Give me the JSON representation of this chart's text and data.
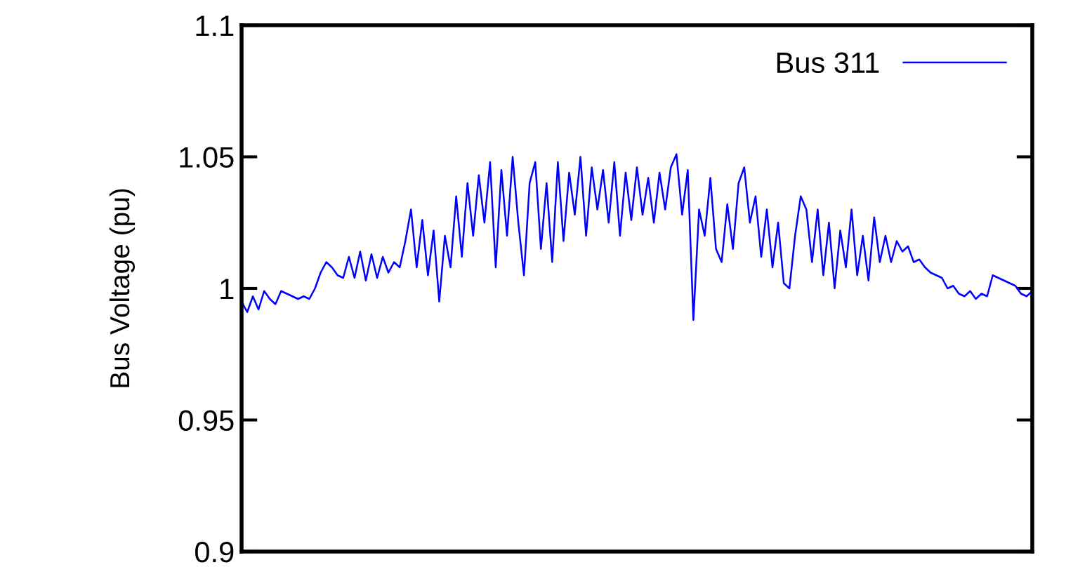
{
  "chart_data": {
    "type": "line",
    "ylabel": "Bus Voltage (pu)",
    "categories": [
      null,
      null,
      null,
      null,
      null,
      null,
      null,
      null,
      null,
      null,
      null,
      null,
      null,
      null,
      null,
      null,
      null,
      null,
      null,
      null,
      null,
      null,
      null,
      null,
      null,
      null,
      null,
      null,
      null,
      null,
      null,
      null,
      null,
      null,
      null,
      null,
      null,
      null,
      null,
      null,
      null,
      null,
      null,
      null,
      null,
      null,
      null,
      null,
      null,
      null,
      null,
      null,
      null,
      null,
      null,
      null,
      null,
      null,
      null,
      null,
      null,
      null,
      null,
      null,
      null,
      null,
      null,
      null,
      null,
      null,
      null,
      null,
      null,
      null,
      null,
      null,
      null,
      null,
      null,
      null,
      null,
      null,
      null,
      null,
      null,
      null,
      null,
      null,
      null,
      null,
      null,
      null,
      null,
      null,
      null,
      null,
      null,
      null,
      null,
      null,
      null,
      null,
      null,
      null,
      null,
      null,
      null,
      null,
      null,
      null,
      null,
      null,
      null,
      null,
      null,
      null,
      null,
      null,
      null,
      null,
      null,
      null,
      null,
      null,
      null,
      null,
      null,
      null,
      null,
      null,
      null,
      null,
      null,
      null,
      null,
      null,
      null,
      null,
      null,
      null,
      null
    ],
    "series": [
      {
        "name": "Bus 311",
        "color": "#0000ff",
        "values": [
          0.995,
          0.991,
          0.997,
          0.992,
          0.999,
          0.996,
          0.994,
          0.999,
          0.998,
          0.997,
          0.996,
          0.997,
          0.996,
          1.0,
          1.006,
          1.01,
          1.008,
          1.005,
          1.004,
          1.012,
          1.004,
          1.014,
          1.003,
          1.013,
          1.004,
          1.012,
          1.006,
          1.01,
          1.008,
          1.018,
          1.03,
          1.008,
          1.026,
          1.005,
          1.022,
          0.995,
          1.02,
          1.008,
          1.035,
          1.012,
          1.04,
          1.02,
          1.043,
          1.025,
          1.048,
          1.008,
          1.045,
          1.02,
          1.05,
          1.025,
          1.005,
          1.04,
          1.048,
          1.015,
          1.04,
          1.01,
          1.048,
          1.018,
          1.044,
          1.028,
          1.05,
          1.02,
          1.046,
          1.03,
          1.045,
          1.025,
          1.048,
          1.02,
          1.044,
          1.026,
          1.046,
          1.028,
          1.042,
          1.025,
          1.044,
          1.03,
          1.046,
          1.051,
          1.028,
          1.045,
          0.988,
          1.03,
          1.02,
          1.042,
          1.015,
          1.01,
          1.032,
          1.015,
          1.04,
          1.046,
          1.025,
          1.035,
          1.012,
          1.03,
          1.008,
          1.025,
          1.002,
          1.0,
          1.02,
          1.035,
          1.03,
          1.01,
          1.03,
          1.005,
          1.025,
          1.0,
          1.022,
          1.008,
          1.03,
          1.005,
          1.02,
          1.003,
          1.027,
          1.01,
          1.02,
          1.01,
          1.018,
          1.014,
          1.016,
          1.01,
          1.011,
          1.008,
          1.006,
          1.005,
          1.004,
          1.0,
          1.001,
          0.998,
          0.997,
          0.999,
          0.996,
          0.998,
          0.997,
          1.005,
          1.004,
          1.003,
          1.002,
          1.001,
          0.998,
          0.997,
          0.999
        ]
      }
    ],
    "ylim": [
      0.9,
      1.1
    ],
    "yticks": [
      0.9,
      0.95,
      1,
      1.05,
      1.1
    ],
    "legend": "top right",
    "line_style": "solid"
  }
}
